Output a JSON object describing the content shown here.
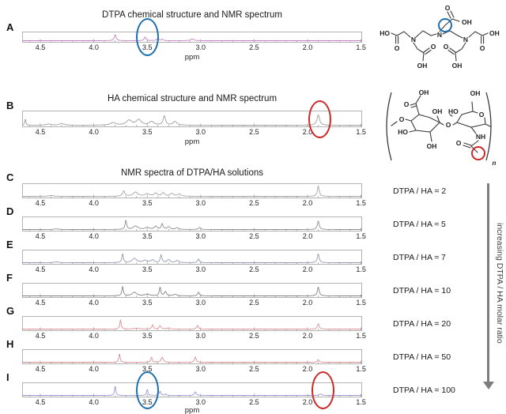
{
  "axis": {
    "unit": "ppm",
    "tick_labels": [
      "4.5",
      "4.0",
      "3.5",
      "3.0",
      "2.5",
      "2.0",
      "1.5"
    ],
    "tick_values": [
      4.5,
      4.0,
      3.5,
      3.0,
      2.5,
      2.0,
      1.5
    ],
    "ppm_left": 4.67,
    "ppm_right": 1.49
  },
  "arrow": {
    "label": "increasing DTPA / HA molar ratio"
  },
  "colors": {
    "annotation_blue": "#1e6fad",
    "annotation_red": "#ce2727",
    "frame": "#b3b3b3",
    "tick": "#8a8a8a",
    "arrow_gray": "#7d7d7d"
  },
  "chart_data": [
    {
      "id": "A",
      "label": "A",
      "type": "line",
      "title": "DTPA chemical structure and NMR spectrum",
      "xlabel": "ppm",
      "x_range": [
        4.67,
        1.49
      ],
      "x_ticks": [
        4.5,
        4.0,
        3.5,
        3.0,
        2.5,
        2.0,
        1.5
      ],
      "color": "#c583c5",
      "ratio_label": null,
      "show_ppm": true,
      "peaks": [
        {
          "ppm": 3.8,
          "h": 0.88,
          "w": 0.01
        },
        {
          "ppm": 3.52,
          "h": 0.52,
          "w": 0.01
        },
        {
          "ppm": 3.4,
          "h": 0.3,
          "w": 0.012
        },
        {
          "ppm": 3.36,
          "h": 0.22,
          "w": 0.01
        },
        {
          "ppm": 3.08,
          "h": 0.26,
          "w": 0.016
        }
      ]
    },
    {
      "id": "B",
      "label": "B",
      "type": "line",
      "title": "HA chemical structure and NMR spectrum",
      "xlabel": "ppm",
      "x_range": [
        4.67,
        1.49
      ],
      "x_ticks": [
        4.5,
        4.0,
        3.5,
        3.0,
        2.5,
        2.0,
        1.5
      ],
      "color": "#9d9d9d",
      "ratio_label": null,
      "show_ppm": true,
      "peaks": [
        {
          "ppm": 4.64,
          "h": 0.5,
          "w": 0.006
        },
        {
          "ppm": 4.42,
          "h": 0.1,
          "w": 0.025
        },
        {
          "ppm": 4.3,
          "h": 0.14,
          "w": 0.022
        },
        {
          "ppm": 3.82,
          "h": 0.2,
          "w": 0.028
        },
        {
          "ppm": 3.67,
          "h": 0.38,
          "w": 0.03
        },
        {
          "ppm": 3.58,
          "h": 0.42,
          "w": 0.028
        },
        {
          "ppm": 3.46,
          "h": 0.28,
          "w": 0.026
        },
        {
          "ppm": 3.34,
          "h": 0.72,
          "w": 0.013
        },
        {
          "ppm": 3.24,
          "h": 0.3,
          "w": 0.02
        },
        {
          "ppm": 1.9,
          "h": 0.82,
          "w": 0.014
        }
      ]
    },
    {
      "id": "C",
      "label": "C",
      "type": "line",
      "title": "NMR spectra of DTPA/HA solutions",
      "xlabel": "ppm",
      "x_range": [
        4.67,
        1.49
      ],
      "x_ticks": [
        4.5,
        4.0,
        3.5,
        3.0,
        2.5,
        2.0,
        1.5
      ],
      "color": "#a3a3a3",
      "ratio_label": "DTPA / HA = 2",
      "show_ppm": false,
      "peaks": [
        {
          "ppm": 4.4,
          "h": 0.08,
          "w": 0.025
        },
        {
          "ppm": 3.72,
          "h": 0.48,
          "w": 0.012
        },
        {
          "ppm": 3.61,
          "h": 0.38,
          "w": 0.025
        },
        {
          "ppm": 3.5,
          "h": 0.22,
          "w": 0.025
        },
        {
          "ppm": 3.42,
          "h": 0.28,
          "w": 0.018
        },
        {
          "ppm": 3.35,
          "h": 0.3,
          "w": 0.016
        },
        {
          "ppm": 3.27,
          "h": 0.24,
          "w": 0.02
        },
        {
          "ppm": 3.2,
          "h": 0.2,
          "w": 0.018
        },
        {
          "ppm": 1.9,
          "h": 0.95,
          "w": 0.01
        }
      ]
    },
    {
      "id": "D",
      "label": "D",
      "type": "line",
      "title": null,
      "xlabel": "ppm",
      "x_range": [
        4.67,
        1.49
      ],
      "x_ticks": [
        4.5,
        4.0,
        3.5,
        3.0,
        2.5,
        2.0,
        1.5
      ],
      "color": "#8e8e8e",
      "ratio_label": "DTPA / HA ≈ 5",
      "show_ppm": false,
      "peaks": [
        {
          "ppm": 4.35,
          "h": 0.06,
          "w": 0.025
        },
        {
          "ppm": 3.7,
          "h": 0.85,
          "w": 0.008
        },
        {
          "ppm": 3.61,
          "h": 0.32,
          "w": 0.025
        },
        {
          "ppm": 3.5,
          "h": 0.18,
          "w": 0.025
        },
        {
          "ppm": 3.42,
          "h": 0.28,
          "w": 0.016
        },
        {
          "ppm": 3.36,
          "h": 0.5,
          "w": 0.01
        },
        {
          "ppm": 3.3,
          "h": 0.24,
          "w": 0.016
        },
        {
          "ppm": 3.22,
          "h": 0.16,
          "w": 0.016
        },
        {
          "ppm": 3.01,
          "h": 0.18,
          "w": 0.012
        },
        {
          "ppm": 1.9,
          "h": 0.78,
          "w": 0.01
        }
      ]
    },
    {
      "id": "E",
      "label": "E",
      "type": "line",
      "title": null,
      "xlabel": "ppm",
      "x_range": [
        4.67,
        1.49
      ],
      "x_ticks": [
        4.5,
        4.0,
        3.5,
        3.0,
        2.5,
        2.0,
        1.5
      ],
      "color": "#9598b0",
      "ratio_label": "DTPA / HA ≈ 7",
      "show_ppm": false,
      "peaks": [
        {
          "ppm": 4.35,
          "h": 0.07,
          "w": 0.025
        },
        {
          "ppm": 3.73,
          "h": 0.8,
          "w": 0.008
        },
        {
          "ppm": 3.62,
          "h": 0.38,
          "w": 0.025
        },
        {
          "ppm": 3.52,
          "h": 0.2,
          "w": 0.025
        },
        {
          "ppm": 3.45,
          "h": 0.25,
          "w": 0.016
        },
        {
          "ppm": 3.37,
          "h": 0.68,
          "w": 0.009
        },
        {
          "ppm": 3.3,
          "h": 0.28,
          "w": 0.016
        },
        {
          "ppm": 3.22,
          "h": 0.2,
          "w": 0.016
        },
        {
          "ppm": 3.02,
          "h": 0.33,
          "w": 0.01
        },
        {
          "ppm": 1.9,
          "h": 0.8,
          "w": 0.01
        }
      ]
    },
    {
      "id": "F",
      "label": "F",
      "type": "line",
      "title": null,
      "xlabel": "ppm",
      "x_range": [
        4.67,
        1.49
      ],
      "x_ticks": [
        4.5,
        4.0,
        3.5,
        3.0,
        2.5,
        2.0,
        1.5
      ],
      "color": "#828285",
      "ratio_label": "DTPA / HA = 10",
      "show_ppm": false,
      "peaks": [
        {
          "ppm": 3.73,
          "h": 0.85,
          "w": 0.008
        },
        {
          "ppm": 3.62,
          "h": 0.33,
          "w": 0.025
        },
        {
          "ppm": 3.5,
          "h": 0.16,
          "w": 0.025
        },
        {
          "ppm": 3.38,
          "h": 0.78,
          "w": 0.008
        },
        {
          "ppm": 3.33,
          "h": 0.38,
          "w": 0.012
        },
        {
          "ppm": 3.24,
          "h": 0.14,
          "w": 0.016
        },
        {
          "ppm": 3.02,
          "h": 0.33,
          "w": 0.01
        },
        {
          "ppm": 1.9,
          "h": 0.8,
          "w": 0.01
        }
      ]
    },
    {
      "id": "G",
      "label": "G",
      "type": "line",
      "title": null,
      "xlabel": "ppm",
      "x_range": [
        4.67,
        1.49
      ],
      "x_ticks": [
        4.5,
        4.0,
        3.5,
        3.0,
        2.5,
        2.0,
        1.5
      ],
      "color": "#d99298",
      "ratio_label": "DTPA / HA = 20",
      "show_ppm": false,
      "peaks": [
        {
          "ppm": 3.75,
          "h": 0.85,
          "w": 0.007
        },
        {
          "ppm": 3.6,
          "h": 0.07,
          "w": 0.03
        },
        {
          "ppm": 3.45,
          "h": 0.38,
          "w": 0.008
        },
        {
          "ppm": 3.38,
          "h": 0.3,
          "w": 0.01
        },
        {
          "ppm": 3.3,
          "h": 0.1,
          "w": 0.015
        },
        {
          "ppm": 3.03,
          "h": 0.33,
          "w": 0.009
        },
        {
          "ppm": 1.9,
          "h": 0.5,
          "w": 0.009
        }
      ]
    },
    {
      "id": "H",
      "label": "H",
      "type": "line",
      "title": null,
      "xlabel": "ppm",
      "x_range": [
        4.67,
        1.49
      ],
      "x_ticks": [
        4.5,
        4.0,
        3.5,
        3.0,
        2.5,
        2.0,
        1.5
      ],
      "color": "#d78e95",
      "ratio_label": "DTPA / HA = 50",
      "show_ppm": false,
      "peaks": [
        {
          "ppm": 3.76,
          "h": 0.78,
          "w": 0.007
        },
        {
          "ppm": 3.46,
          "h": 0.48,
          "w": 0.007
        },
        {
          "ppm": 3.36,
          "h": 0.45,
          "w": 0.012
        },
        {
          "ppm": 3.05,
          "h": 0.48,
          "w": 0.009
        },
        {
          "ppm": 1.9,
          "h": 0.24,
          "w": 0.009
        }
      ]
    },
    {
      "id": "I",
      "label": "I",
      "type": "line",
      "title": null,
      "xlabel": "ppm",
      "x_range": [
        4.67,
        1.49
      ],
      "x_ticks": [
        4.5,
        4.0,
        3.5,
        3.0,
        2.5,
        2.0,
        1.5
      ],
      "color": "#9a96d2",
      "ratio_label": "DTPA / HA = 100",
      "show_ppm": true,
      "peaks": [
        {
          "ppm": 3.8,
          "h": 0.85,
          "w": 0.007
        },
        {
          "ppm": 3.5,
          "h": 0.55,
          "w": 0.007
        },
        {
          "ppm": 3.38,
          "h": 0.38,
          "w": 0.009
        },
        {
          "ppm": 3.33,
          "h": 0.12,
          "w": 0.009
        },
        {
          "ppm": 3.05,
          "h": 0.33,
          "w": 0.01
        },
        {
          "ppm": 1.88,
          "h": 0.14,
          "w": 0.012
        }
      ]
    }
  ],
  "annotations": [
    {
      "panel": "A",
      "ppm": 3.5,
      "color": "#1e6fad",
      "meaning": "DTPA peak circled"
    },
    {
      "panel": "B",
      "ppm": 1.89,
      "color": "#ce2727",
      "meaning": "HA acetyl peak circled"
    },
    {
      "panel": "I",
      "ppm": 3.5,
      "color": "#1e6fad",
      "meaning": "DTPA peak circled"
    },
    {
      "panel": "I",
      "ppm": 1.86,
      "color": "#ce2727",
      "meaning": "HA acetyl peak circled"
    }
  ],
  "structures": {
    "dtpa": {
      "name": "DTPA",
      "atoms": [
        "O",
        "OH",
        "N",
        "N",
        "N",
        "HO",
        "O",
        "O",
        "OH",
        "O",
        "OH",
        "O",
        "OH"
      ]
    },
    "ha": {
      "name": "HA",
      "atoms": [
        "OH",
        "O",
        "OH",
        "O",
        "OH",
        "HO",
        "O",
        "O",
        "HO",
        "OH",
        "NH",
        "O",
        "n"
      ]
    }
  }
}
